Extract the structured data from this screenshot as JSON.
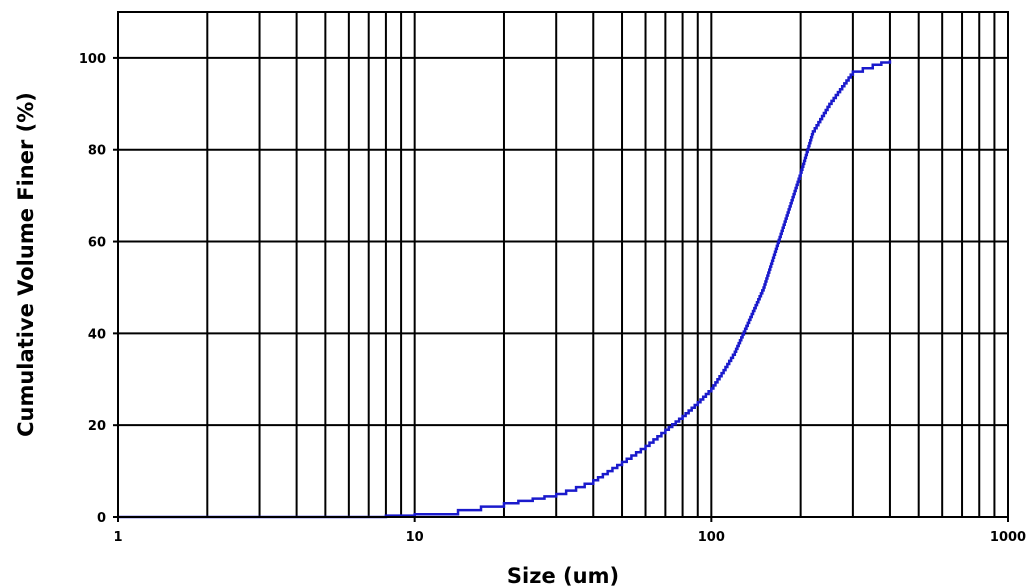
{
  "chart_data": {
    "type": "line",
    "title": "",
    "xlabel": "Size (um)",
    "ylabel": "Cumulative Volume Finer (%)",
    "x_scale": "log",
    "xlim": [
      1,
      1000
    ],
    "ylim": [
      0,
      110
    ],
    "grid": true,
    "x_tick_labels": [
      "1",
      "10",
      "100",
      "1000"
    ],
    "x_tick_values": [
      1,
      10,
      100,
      1000
    ],
    "y_tick_labels": [
      "0",
      "20",
      "40",
      "60",
      "80",
      "100"
    ],
    "y_tick_values": [
      0,
      20,
      40,
      60,
      80,
      100
    ],
    "series": [
      {
        "color": "#1a1acc",
        "x": [
          1,
          6.5,
          8,
          10,
          14,
          20,
          25,
          30,
          35,
          40,
          50,
          60,
          70,
          80,
          90,
          100,
          110,
          120,
          130,
          150,
          170,
          200,
          220,
          250,
          300,
          350,
          400
        ],
        "y": [
          0,
          0,
          0.3,
          0.6,
          1.5,
          3,
          4,
          5,
          6.5,
          8,
          12,
          15.5,
          19,
          22,
          25,
          28,
          32,
          36,
          41,
          50,
          61,
          75,
          84,
          90,
          97,
          98.5,
          99.5
        ]
      }
    ]
  }
}
